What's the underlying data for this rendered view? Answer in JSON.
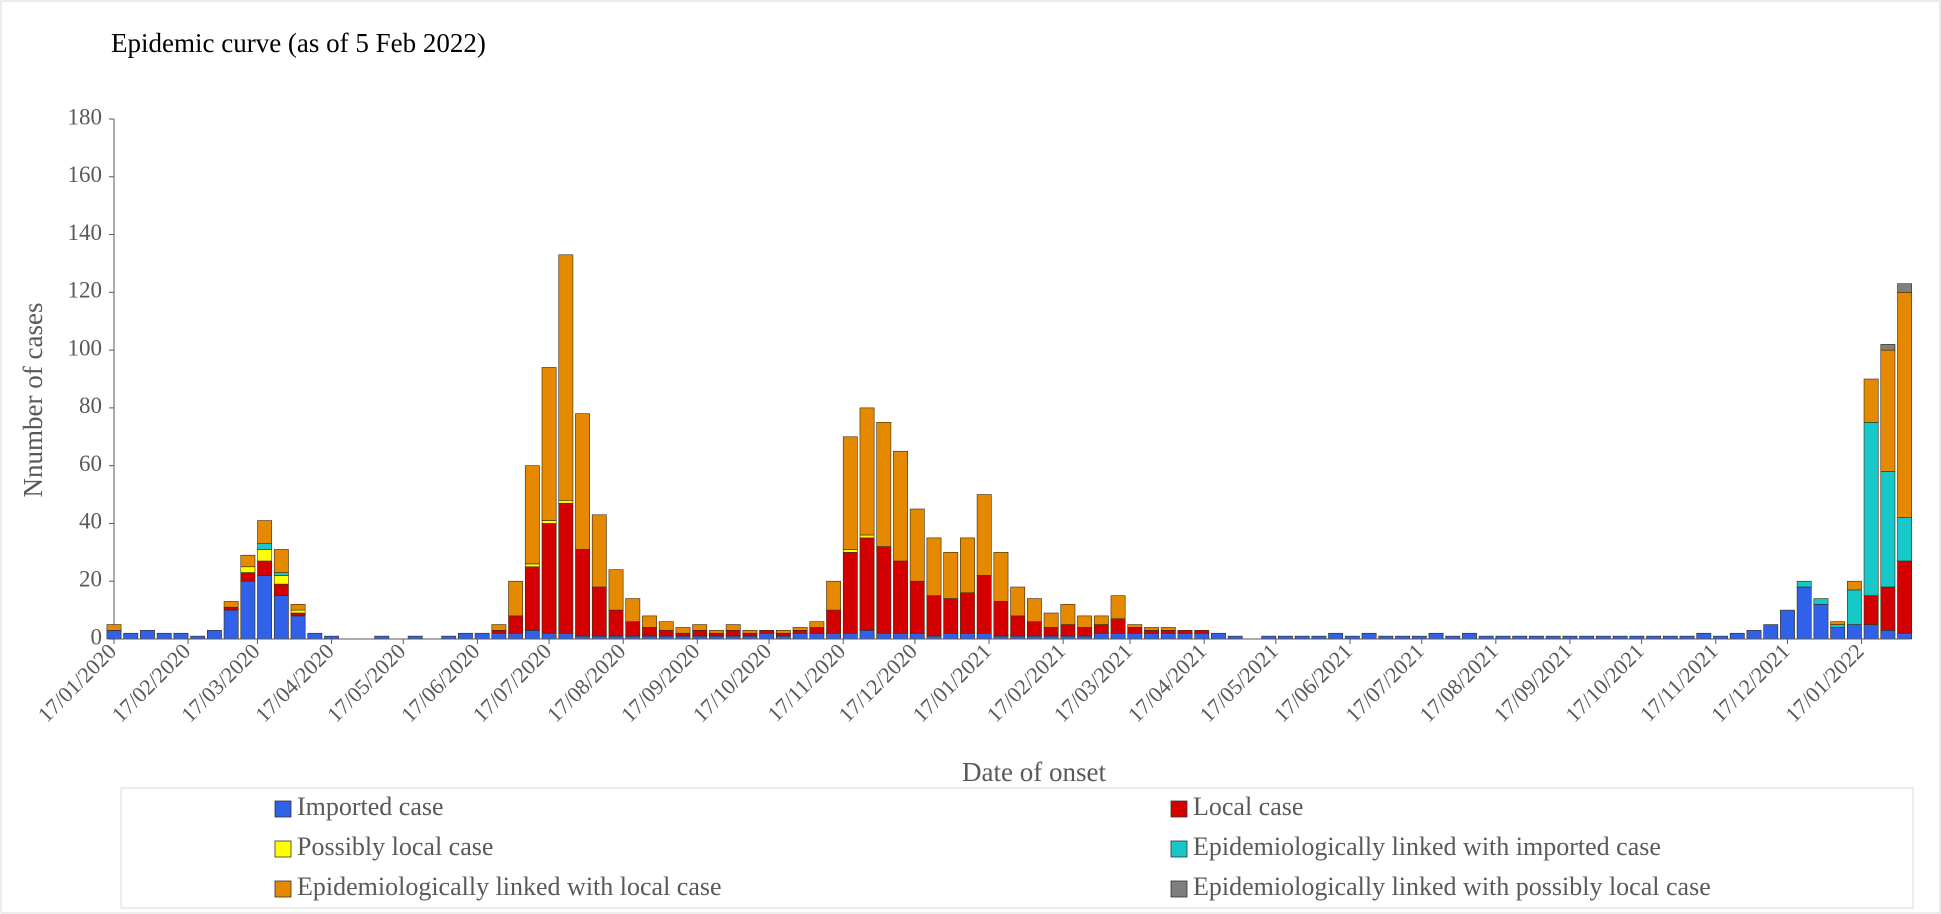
{
  "chart_data": {
    "type": "bar",
    "stacked": true,
    "subtitle": "Epidemic curve (as of 5 Feb 2022)",
    "x_label": "Date of onset",
    "y_label": "Nnumber of cases",
    "x": [
      "17/01/2020",
      "24/01/2020",
      "31/01/2020",
      "07/02/2020",
      "14/02/2020",
      "21/02/2020",
      "28/02/2020",
      "06/03/2020",
      "13/03/2020",
      "20/03/2020",
      "27/03/2020",
      "03/04/2020",
      "10/04/2020",
      "17/04/2020",
      "24/04/2020",
      "01/05/2020",
      "08/05/2020",
      "15/05/2020",
      "22/05/2020",
      "29/05/2020",
      "05/06/2020",
      "12/06/2020",
      "19/06/2020",
      "26/06/2020",
      "03/07/2020",
      "10/07/2020",
      "17/07/2020",
      "24/07/2020",
      "31/07/2020",
      "07/08/2020",
      "14/08/2020",
      "21/08/2020",
      "28/08/2020",
      "04/09/2020",
      "11/09/2020",
      "18/09/2020",
      "25/09/2020",
      "02/10/2020",
      "09/10/2020",
      "16/10/2020",
      "23/10/2020",
      "30/10/2020",
      "06/11/2020",
      "13/11/2020",
      "20/11/2020",
      "27/11/2020",
      "04/12/2020",
      "11/12/2020",
      "18/12/2020",
      "25/12/2020",
      "01/01/2021",
      "08/01/2021",
      "15/01/2021",
      "22/01/2021",
      "29/01/2021",
      "05/02/2021",
      "12/02/2021",
      "19/02/2021",
      "26/02/2021",
      "05/03/2021",
      "12/03/2021",
      "19/03/2021",
      "26/03/2021",
      "02/04/2021",
      "09/04/2021",
      "16/04/2021",
      "23/04/2021",
      "30/04/2021",
      "07/05/2021",
      "14/05/2021",
      "21/05/2021",
      "28/05/2021",
      "04/06/2021",
      "11/06/2021",
      "18/06/2021",
      "25/06/2021",
      "02/07/2021",
      "09/07/2021",
      "16/07/2021",
      "23/07/2021",
      "30/07/2021",
      "06/08/2021",
      "13/08/2021",
      "20/08/2021",
      "27/08/2021",
      "03/09/2021",
      "10/09/2021",
      "17/09/2021",
      "24/09/2021",
      "01/10/2021",
      "08/10/2021",
      "15/10/2021",
      "22/10/2021",
      "29/10/2021",
      "05/11/2021",
      "12/11/2021",
      "19/11/2021",
      "26/11/2021",
      "03/12/2021",
      "10/12/2021",
      "17/12/2021",
      "24/12/2021",
      "31/12/2021",
      "07/01/2022",
      "14/01/2022",
      "21/01/2022",
      "28/01/2022",
      "04/02/2022"
    ],
    "series": [
      {
        "name": "Imported case",
        "color": "#2f62e8",
        "values": [
          3,
          2,
          3,
          2,
          2,
          1,
          3,
          10,
          20,
          22,
          15,
          8,
          2,
          1,
          0,
          0,
          1,
          0,
          1,
          0,
          1,
          2,
          2,
          2,
          2,
          3,
          2,
          2,
          1,
          1,
          1,
          1,
          1,
          1,
          1,
          1,
          1,
          1,
          1,
          2,
          1,
          2,
          2,
          2,
          2,
          3,
          2,
          2,
          2,
          1,
          2,
          2,
          2,
          1,
          1,
          1,
          1,
          1,
          1,
          2,
          2,
          2,
          2,
          2,
          2,
          2,
          2,
          1,
          0,
          1,
          1,
          1,
          1,
          2,
          1,
          2,
          1,
          1,
          1,
          2,
          1,
          2,
          1,
          1,
          1,
          1,
          1,
          1,
          1,
          1,
          1,
          1,
          1,
          1,
          1,
          2,
          1,
          2,
          3,
          5,
          10,
          18,
          12,
          4,
          5,
          5,
          3,
          2
        ]
      },
      {
        "name": "Local case",
        "color": "#d40000",
        "values": [
          0,
          0,
          0,
          0,
          0,
          0,
          0,
          1,
          3,
          5,
          4,
          1,
          0,
          0,
          0,
          0,
          0,
          0,
          0,
          0,
          0,
          0,
          0,
          1,
          6,
          22,
          38,
          45,
          30,
          17,
          9,
          5,
          3,
          2,
          1,
          2,
          1,
          2,
          1,
          1,
          1,
          1,
          2,
          8,
          28,
          32,
          30,
          25,
          18,
          14,
          12,
          14,
          20,
          12,
          7,
          5,
          3,
          4,
          3,
          3,
          5,
          2,
          1,
          1,
          1,
          1,
          0,
          0,
          0,
          0,
          0,
          0,
          0,
          0,
          0,
          0,
          0,
          0,
          0,
          0,
          0,
          0,
          0,
          0,
          0,
          0,
          0,
          0,
          0,
          0,
          0,
          0,
          0,
          0,
          0,
          0,
          0,
          0,
          0,
          0,
          0,
          0,
          0,
          0,
          0,
          10,
          15,
          25
        ]
      },
      {
        "name": "Possibly local case",
        "color": "#ffff00",
        "values": [
          0,
          0,
          0,
          0,
          0,
          0,
          0,
          0,
          2,
          4,
          3,
          1,
          0,
          0,
          0,
          0,
          0,
          0,
          0,
          0,
          0,
          0,
          0,
          0,
          0,
          1,
          1,
          1,
          0,
          0,
          0,
          0,
          0,
          0,
          0,
          0,
          0,
          0,
          0,
          0,
          0,
          0,
          0,
          0,
          1,
          1,
          0,
          0,
          0,
          0,
          0,
          0,
          0,
          0,
          0,
          0,
          0,
          0,
          0,
          0,
          0,
          0,
          0,
          0,
          0,
          0,
          0,
          0,
          0,
          0,
          0,
          0,
          0,
          0,
          0,
          0,
          0,
          0,
          0,
          0,
          0,
          0,
          0,
          0,
          0,
          0,
          0,
          0,
          0,
          0,
          0,
          0,
          0,
          0,
          0,
          0,
          0,
          0,
          0,
          0,
          0,
          0,
          0,
          0,
          0,
          0,
          0,
          0
        ]
      },
      {
        "name": "Epidemiologically linked with imported case",
        "color": "#17c8c8",
        "values": [
          0,
          0,
          0,
          0,
          0,
          0,
          0,
          0,
          0,
          2,
          1,
          0,
          0,
          0,
          0,
          0,
          0,
          0,
          0,
          0,
          0,
          0,
          0,
          0,
          0,
          0,
          0,
          0,
          0,
          0,
          0,
          0,
          0,
          0,
          0,
          0,
          0,
          0,
          0,
          0,
          0,
          0,
          0,
          0,
          0,
          0,
          0,
          0,
          0,
          0,
          0,
          0,
          0,
          0,
          0,
          0,
          0,
          0,
          0,
          0,
          0,
          0,
          0,
          0,
          0,
          0,
          0,
          0,
          0,
          0,
          0,
          0,
          0,
          0,
          0,
          0,
          0,
          0,
          0,
          0,
          0,
          0,
          0,
          0,
          0,
          0,
          0,
          0,
          0,
          0,
          0,
          0,
          0,
          0,
          0,
          0,
          0,
          0,
          0,
          0,
          0,
          2,
          2,
          1,
          12,
          60,
          40,
          15
        ]
      },
      {
        "name": "Epidemiologically linked with local case",
        "color": "#e58a00",
        "values": [
          2,
          0,
          0,
          0,
          0,
          0,
          0,
          2,
          4,
          8,
          8,
          2,
          0,
          0,
          0,
          0,
          0,
          0,
          0,
          0,
          0,
          0,
          0,
          2,
          12,
          34,
          53,
          85,
          47,
          25,
          14,
          8,
          4,
          3,
          2,
          2,
          1,
          2,
          1,
          0,
          1,
          1,
          2,
          10,
          39,
          44,
          43,
          38,
          25,
          20,
          16,
          19,
          28,
          17,
          10,
          8,
          5,
          7,
          4,
          3,
          8,
          1,
          1,
          1,
          0,
          0,
          0,
          0,
          0,
          0,
          0,
          0,
          0,
          0,
          0,
          0,
          0,
          0,
          0,
          0,
          0,
          0,
          0,
          0,
          0,
          0,
          0,
          0,
          0,
          0,
          0,
          0,
          0,
          0,
          0,
          0,
          0,
          0,
          0,
          0,
          0,
          0,
          0,
          1,
          3,
          15,
          42,
          78
        ]
      },
      {
        "name": "Epidemiologically linked with possibly local case",
        "color": "#7f7f7f",
        "values": [
          0,
          0,
          0,
          0,
          0,
          0,
          0,
          0,
          0,
          0,
          0,
          0,
          0,
          0,
          0,
          0,
          0,
          0,
          0,
          0,
          0,
          0,
          0,
          0,
          0,
          0,
          0,
          0,
          0,
          0,
          0,
          0,
          0,
          0,
          0,
          0,
          0,
          0,
          0,
          0,
          0,
          0,
          0,
          0,
          0,
          0,
          0,
          0,
          0,
          0,
          0,
          0,
          0,
          0,
          0,
          0,
          0,
          0,
          0,
          0,
          0,
          0,
          0,
          0,
          0,
          0,
          0,
          0,
          0,
          0,
          0,
          0,
          0,
          0,
          0,
          0,
          0,
          0,
          0,
          0,
          0,
          0,
          0,
          0,
          0,
          0,
          0,
          0,
          0,
          0,
          0,
          0,
          0,
          0,
          0,
          0,
          0,
          0,
          0,
          0,
          0,
          0,
          0,
          0,
          0,
          0,
          2,
          3
        ]
      }
    ],
    "xlim": [
      "17/01/2020",
      "05/02/2022"
    ],
    "xticks": [
      "17/01/2020",
      "17/02/2020",
      "17/03/2020",
      "17/04/2020",
      "17/05/2020",
      "17/06/2020",
      "17/07/2020",
      "17/08/2020",
      "17/09/2020",
      "17/10/2020",
      "17/11/2020",
      "17/12/2020",
      "17/01/2021",
      "17/02/2021",
      "17/03/2021",
      "17/04/2021",
      "17/05/2021",
      "17/06/2021",
      "17/07/2021",
      "17/08/2021",
      "17/09/2021",
      "17/10/2021",
      "17/11/2021",
      "17/12/2021",
      "17/01/2022"
    ],
    "ylim": [
      0,
      180
    ],
    "yticks": [
      0,
      20,
      40,
      60,
      80,
      100,
      120,
      140,
      160,
      180
    ],
    "grid": false,
    "legend": "bottom"
  }
}
